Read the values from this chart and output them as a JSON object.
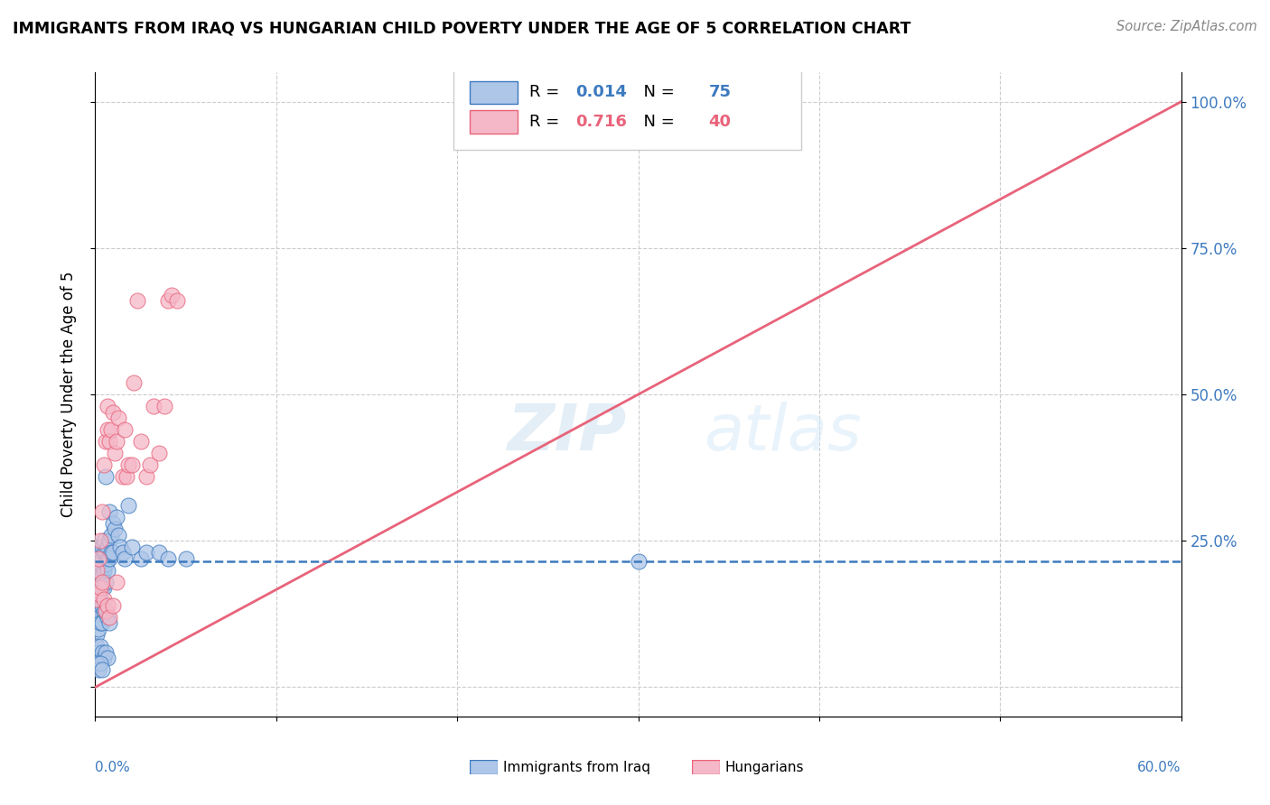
{
  "title": "IMMIGRANTS FROM IRAQ VS HUNGARIAN CHILD POVERTY UNDER THE AGE OF 5 CORRELATION CHART",
  "source": "Source: ZipAtlas.com",
  "ylabel": "Child Poverty Under the Age of 5",
  "legend_label1": "Immigrants from Iraq",
  "legend_label2": "Hungarians",
  "r1": "0.014",
  "n1": "75",
  "r2": "0.716",
  "n2": "40",
  "color_blue": "#aec6e8",
  "color_pink": "#f5b8c8",
  "color_line_blue": "#3d7abf",
  "color_line_pink": "#e8637a",
  "watermark_zip": "ZIP",
  "watermark_atlas": "atlas",
  "xlim": [
    0.0,
    0.6
  ],
  "ylim": [
    -0.05,
    1.05
  ],
  "blue_points_x": [
    0.001,
    0.001,
    0.001,
    0.001,
    0.001,
    0.002,
    0.002,
    0.002,
    0.002,
    0.002,
    0.003,
    0.003,
    0.003,
    0.003,
    0.003,
    0.004,
    0.004,
    0.004,
    0.004,
    0.005,
    0.005,
    0.005,
    0.005,
    0.006,
    0.006,
    0.006,
    0.006,
    0.007,
    0.007,
    0.007,
    0.008,
    0.008,
    0.008,
    0.009,
    0.009,
    0.01,
    0.01,
    0.011,
    0.012,
    0.013,
    0.014,
    0.015,
    0.016,
    0.018,
    0.02,
    0.025,
    0.028,
    0.035,
    0.04,
    0.05,
    0.001,
    0.001,
    0.001,
    0.002,
    0.002,
    0.003,
    0.003,
    0.004,
    0.004,
    0.005,
    0.006,
    0.007,
    0.008,
    0.001,
    0.002,
    0.003,
    0.004,
    0.005,
    0.006,
    0.007,
    0.001,
    0.002,
    0.003,
    0.004,
    0.3
  ],
  "blue_points_y": [
    0.24,
    0.22,
    0.2,
    0.18,
    0.15,
    0.22,
    0.21,
    0.19,
    0.17,
    0.14,
    0.23,
    0.21,
    0.19,
    0.17,
    0.15,
    0.24,
    0.22,
    0.19,
    0.17,
    0.25,
    0.23,
    0.2,
    0.17,
    0.36,
    0.23,
    0.21,
    0.18,
    0.24,
    0.22,
    0.2,
    0.3,
    0.25,
    0.22,
    0.26,
    0.23,
    0.28,
    0.23,
    0.27,
    0.29,
    0.26,
    0.24,
    0.23,
    0.22,
    0.31,
    0.24,
    0.22,
    0.23,
    0.23,
    0.22,
    0.22,
    0.13,
    0.11,
    0.09,
    0.13,
    0.1,
    0.14,
    0.11,
    0.14,
    0.11,
    0.13,
    0.13,
    0.12,
    0.11,
    0.07,
    0.06,
    0.07,
    0.06,
    0.05,
    0.06,
    0.05,
    0.04,
    0.03,
    0.04,
    0.03,
    0.215
  ],
  "pink_points_x": [
    0.001,
    0.002,
    0.003,
    0.004,
    0.005,
    0.006,
    0.007,
    0.007,
    0.008,
    0.009,
    0.01,
    0.011,
    0.012,
    0.013,
    0.015,
    0.016,
    0.017,
    0.018,
    0.02,
    0.021,
    0.023,
    0.025,
    0.028,
    0.03,
    0.032,
    0.035,
    0.038,
    0.04,
    0.042,
    0.045,
    0.001,
    0.002,
    0.003,
    0.004,
    0.005,
    0.006,
    0.007,
    0.008,
    0.01,
    0.012
  ],
  "pink_points_y": [
    0.2,
    0.22,
    0.25,
    0.3,
    0.38,
    0.42,
    0.44,
    0.48,
    0.42,
    0.44,
    0.47,
    0.4,
    0.42,
    0.46,
    0.36,
    0.44,
    0.36,
    0.38,
    0.38,
    0.52,
    0.66,
    0.42,
    0.36,
    0.38,
    0.48,
    0.4,
    0.48,
    0.66,
    0.67,
    0.66,
    0.15,
    0.16,
    0.17,
    0.18,
    0.15,
    0.13,
    0.14,
    0.12,
    0.14,
    0.18
  ],
  "pink_line_x0": 0.0,
  "pink_line_y0": 0.0,
  "pink_line_x1": 0.6,
  "pink_line_y1": 1.0,
  "blue_line_x0": 0.0,
  "blue_line_y0": 0.215,
  "blue_line_x1": 0.6,
  "blue_line_y1": 0.215
}
